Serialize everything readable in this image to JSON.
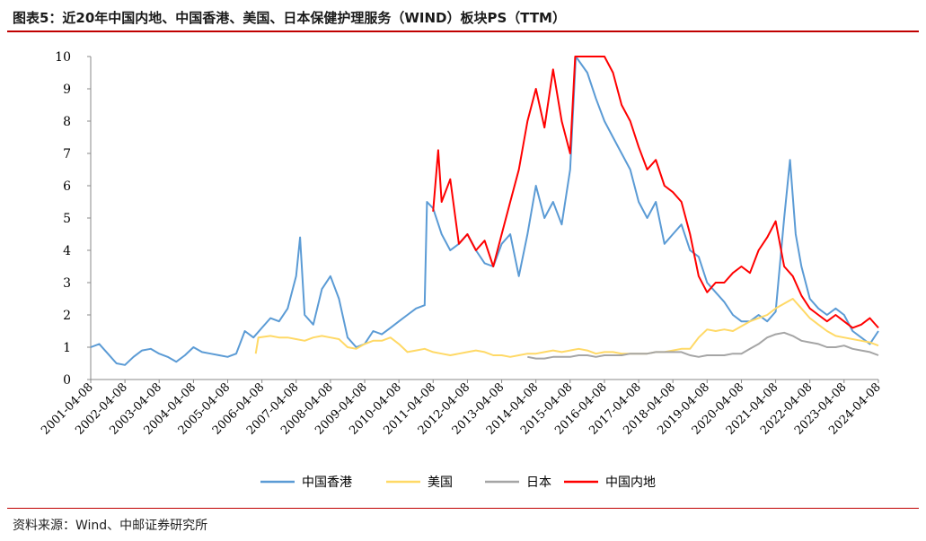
{
  "header": {
    "title": "图表5：近20年中国内地、中国香港、美国、日本保健护理服务（WIND）板块PS（TTM）"
  },
  "footer": {
    "source": "资料来源：Wind、中邮证券研究所"
  },
  "colors": {
    "accent_rule": "#c00000"
  },
  "chart_data": {
    "type": "line",
    "title": "图表5：近20年中国内地、中国香港、美国、日本保健护理服务（WIND）板块PS（TTM）",
    "xlabel": "",
    "ylabel": "",
    "ylim": [
      0,
      10
    ],
    "yticks": [
      "0",
      "1",
      "2",
      "3",
      "4",
      "5",
      "6",
      "7",
      "8",
      "9",
      "10"
    ],
    "xticks": [
      "2001-04-08",
      "2002-04-08",
      "2003-04-08",
      "2004-04-08",
      "2005-04-08",
      "2006-04-08",
      "2007-04-08",
      "2008-04-08",
      "2009-04-08",
      "2010-04-08",
      "2011-04-08",
      "2012-04-08",
      "2013-04-08",
      "2014-04-08",
      "2015-04-08",
      "2016-04-08",
      "2017-04-08",
      "2018-04-08",
      "2019-04-08",
      "2020-04-08",
      "2021-04-08",
      "2022-04-08",
      "2023-04-08",
      "2024-04-08"
    ],
    "grid": false,
    "legend_position": "bottom",
    "series": [
      {
        "name": "中国香港",
        "color": "#5b9bd5",
        "points": [
          [
            "2001-04-08",
            1.0
          ],
          [
            "2001-07-08",
            1.1
          ],
          [
            "2001-10-08",
            0.8
          ],
          [
            "2002-01-08",
            0.5
          ],
          [
            "2002-04-08",
            0.45
          ],
          [
            "2002-07-08",
            0.7
          ],
          [
            "2002-10-08",
            0.9
          ],
          [
            "2003-01-08",
            0.95
          ],
          [
            "2003-04-08",
            0.8
          ],
          [
            "2003-07-08",
            0.7
          ],
          [
            "2003-10-08",
            0.55
          ],
          [
            "2004-01-08",
            0.75
          ],
          [
            "2004-04-08",
            1.0
          ],
          [
            "2004-07-08",
            0.85
          ],
          [
            "2004-10-08",
            0.8
          ],
          [
            "2005-01-08",
            0.75
          ],
          [
            "2005-04-08",
            0.7
          ],
          [
            "2005-07-08",
            0.8
          ],
          [
            "2005-10-08",
            1.5
          ],
          [
            "2006-01-08",
            1.3
          ],
          [
            "2006-04-08",
            1.6
          ],
          [
            "2006-07-08",
            1.9
          ],
          [
            "2006-10-08",
            1.8
          ],
          [
            "2007-01-08",
            2.2
          ],
          [
            "2007-04-08",
            3.2
          ],
          [
            "2007-05-20",
            4.4
          ],
          [
            "2007-07-08",
            2.0
          ],
          [
            "2007-10-08",
            1.7
          ],
          [
            "2008-01-08",
            2.8
          ],
          [
            "2008-04-08",
            3.2
          ],
          [
            "2008-07-08",
            2.5
          ],
          [
            "2008-10-08",
            1.3
          ],
          [
            "2009-01-08",
            1.0
          ],
          [
            "2009-04-08",
            1.1
          ],
          [
            "2009-07-08",
            1.5
          ],
          [
            "2009-10-08",
            1.4
          ],
          [
            "2010-01-08",
            1.6
          ],
          [
            "2010-04-08",
            1.8
          ],
          [
            "2010-07-08",
            2.0
          ],
          [
            "2010-10-08",
            2.2
          ],
          [
            "2011-01-08",
            2.3
          ],
          [
            "2011-02-01",
            5.5
          ],
          [
            "2011-04-08",
            5.3
          ],
          [
            "2011-07-08",
            4.5
          ],
          [
            "2011-10-08",
            4.0
          ],
          [
            "2012-01-08",
            4.2
          ],
          [
            "2012-04-08",
            4.5
          ],
          [
            "2012-07-08",
            4.0
          ],
          [
            "2012-10-08",
            3.6
          ],
          [
            "2013-01-08",
            3.5
          ],
          [
            "2013-04-08",
            4.2
          ],
          [
            "2013-07-08",
            4.5
          ],
          [
            "2013-10-08",
            3.2
          ],
          [
            "2014-01-08",
            4.5
          ],
          [
            "2014-04-08",
            6.0
          ],
          [
            "2014-07-08",
            5.0
          ],
          [
            "2014-10-08",
            5.5
          ],
          [
            "2015-01-08",
            4.8
          ],
          [
            "2015-04-08",
            6.5
          ],
          [
            "2015-06-08",
            10
          ],
          [
            "2015-10-08",
            9.5
          ],
          [
            "2016-01-08",
            8.7
          ],
          [
            "2016-04-08",
            8.0
          ],
          [
            "2016-07-08",
            7.5
          ],
          [
            "2016-10-08",
            7.0
          ],
          [
            "2017-01-08",
            6.5
          ],
          [
            "2017-04-08",
            5.5
          ],
          [
            "2017-07-08",
            5.0
          ],
          [
            "2017-10-08",
            5.5
          ],
          [
            "2018-01-08",
            4.2
          ],
          [
            "2018-04-08",
            4.5
          ],
          [
            "2018-07-08",
            4.8
          ],
          [
            "2018-10-08",
            4.0
          ],
          [
            "2019-01-08",
            3.8
          ],
          [
            "2019-04-08",
            3.0
          ],
          [
            "2019-07-08",
            2.7
          ],
          [
            "2019-10-08",
            2.4
          ],
          [
            "2020-01-08",
            2.0
          ],
          [
            "2020-04-08",
            1.8
          ],
          [
            "2020-07-08",
            1.8
          ],
          [
            "2020-10-08",
            2.0
          ],
          [
            "2021-01-08",
            1.8
          ],
          [
            "2021-04-08",
            2.1
          ],
          [
            "2021-07-08",
            5.0
          ],
          [
            "2021-09-08",
            6.8
          ],
          [
            "2021-11-08",
            4.5
          ],
          [
            "2022-01-08",
            3.5
          ],
          [
            "2022-04-08",
            2.5
          ],
          [
            "2022-07-08",
            2.2
          ],
          [
            "2022-10-08",
            2.0
          ],
          [
            "2023-01-08",
            2.2
          ],
          [
            "2023-04-08",
            2.0
          ],
          [
            "2023-07-08",
            1.5
          ],
          [
            "2023-10-08",
            1.3
          ],
          [
            "2024-01-08",
            1.1
          ],
          [
            "2024-04-08",
            1.5
          ]
        ]
      },
      {
        "name": "美国",
        "color": "#ffd966",
        "points": [
          [
            "2006-02-01",
            0.8
          ],
          [
            "2006-03-01",
            1.3
          ],
          [
            "2006-07-08",
            1.35
          ],
          [
            "2006-10-08",
            1.3
          ],
          [
            "2007-01-08",
            1.3
          ],
          [
            "2007-04-08",
            1.25
          ],
          [
            "2007-07-08",
            1.2
          ],
          [
            "2007-10-08",
            1.3
          ],
          [
            "2008-01-08",
            1.35
          ],
          [
            "2008-04-08",
            1.3
          ],
          [
            "2008-07-08",
            1.25
          ],
          [
            "2008-10-08",
            1.0
          ],
          [
            "2009-01-08",
            0.95
          ],
          [
            "2009-04-08",
            1.1
          ],
          [
            "2009-07-08",
            1.2
          ],
          [
            "2009-10-08",
            1.2
          ],
          [
            "2010-01-08",
            1.3
          ],
          [
            "2010-04-08",
            1.1
          ],
          [
            "2010-07-08",
            0.85
          ],
          [
            "2010-10-08",
            0.9
          ],
          [
            "2011-01-08",
            0.95
          ],
          [
            "2011-04-08",
            0.85
          ],
          [
            "2011-07-08",
            0.8
          ],
          [
            "2011-10-08",
            0.75
          ],
          [
            "2012-01-08",
            0.8
          ],
          [
            "2012-04-08",
            0.85
          ],
          [
            "2012-07-08",
            0.9
          ],
          [
            "2012-10-08",
            0.85
          ],
          [
            "2013-01-08",
            0.75
          ],
          [
            "2013-04-08",
            0.75
          ],
          [
            "2013-07-08",
            0.7
          ],
          [
            "2013-10-08",
            0.75
          ],
          [
            "2014-01-08",
            0.8
          ],
          [
            "2014-04-08",
            0.8
          ],
          [
            "2014-07-08",
            0.85
          ],
          [
            "2014-10-08",
            0.9
          ],
          [
            "2015-01-08",
            0.85
          ],
          [
            "2015-04-08",
            0.9
          ],
          [
            "2015-07-08",
            0.95
          ],
          [
            "2015-10-08",
            0.9
          ],
          [
            "2016-01-08",
            0.8
          ],
          [
            "2016-04-08",
            0.85
          ],
          [
            "2016-07-08",
            0.85
          ],
          [
            "2016-10-08",
            0.8
          ],
          [
            "2017-01-08",
            0.8
          ],
          [
            "2017-04-08",
            0.8
          ],
          [
            "2017-07-08",
            0.8
          ],
          [
            "2017-10-08",
            0.85
          ],
          [
            "2018-01-08",
            0.85
          ],
          [
            "2018-04-08",
            0.9
          ],
          [
            "2018-07-08",
            0.95
          ],
          [
            "2018-10-08",
            0.95
          ],
          [
            "2019-01-08",
            1.3
          ],
          [
            "2019-04-08",
            1.55
          ],
          [
            "2019-07-08",
            1.5
          ],
          [
            "2019-10-08",
            1.55
          ],
          [
            "2020-01-08",
            1.5
          ],
          [
            "2020-04-08",
            1.65
          ],
          [
            "2020-07-08",
            1.8
          ],
          [
            "2020-10-08",
            1.9
          ],
          [
            "2021-01-08",
            2.0
          ],
          [
            "2021-04-08",
            2.2
          ],
          [
            "2021-07-08",
            2.35
          ],
          [
            "2021-10-08",
            2.5
          ],
          [
            "2022-01-08",
            2.2
          ],
          [
            "2022-04-08",
            1.9
          ],
          [
            "2022-07-08",
            1.7
          ],
          [
            "2022-10-08",
            1.5
          ],
          [
            "2023-01-08",
            1.35
          ],
          [
            "2023-04-08",
            1.3
          ],
          [
            "2023-07-08",
            1.25
          ],
          [
            "2023-10-08",
            1.2
          ],
          [
            "2024-01-08",
            1.15
          ],
          [
            "2024-04-08",
            1.05
          ]
        ]
      },
      {
        "name": "日本",
        "color": "#a5a5a5",
        "points": [
          [
            "2014-01-08",
            0.7
          ],
          [
            "2014-04-08",
            0.65
          ],
          [
            "2014-07-08",
            0.65
          ],
          [
            "2014-10-08",
            0.7
          ],
          [
            "2015-01-08",
            0.7
          ],
          [
            "2015-04-08",
            0.7
          ],
          [
            "2015-07-08",
            0.75
          ],
          [
            "2015-10-08",
            0.75
          ],
          [
            "2016-01-08",
            0.7
          ],
          [
            "2016-04-08",
            0.75
          ],
          [
            "2016-07-08",
            0.75
          ],
          [
            "2016-10-08",
            0.75
          ],
          [
            "2017-01-08",
            0.8
          ],
          [
            "2017-04-08",
            0.8
          ],
          [
            "2017-07-08",
            0.8
          ],
          [
            "2017-10-08",
            0.85
          ],
          [
            "2018-01-08",
            0.85
          ],
          [
            "2018-04-08",
            0.85
          ],
          [
            "2018-07-08",
            0.85
          ],
          [
            "2018-10-08",
            0.75
          ],
          [
            "2019-01-08",
            0.7
          ],
          [
            "2019-04-08",
            0.75
          ],
          [
            "2019-07-08",
            0.75
          ],
          [
            "2019-10-08",
            0.75
          ],
          [
            "2020-01-08",
            0.8
          ],
          [
            "2020-04-08",
            0.8
          ],
          [
            "2020-07-08",
            0.95
          ],
          [
            "2020-10-08",
            1.1
          ],
          [
            "2021-01-08",
            1.3
          ],
          [
            "2021-04-08",
            1.4
          ],
          [
            "2021-07-08",
            1.45
          ],
          [
            "2021-10-08",
            1.35
          ],
          [
            "2022-01-08",
            1.2
          ],
          [
            "2022-04-08",
            1.15
          ],
          [
            "2022-07-08",
            1.1
          ],
          [
            "2022-10-08",
            1.0
          ],
          [
            "2023-01-08",
            1.0
          ],
          [
            "2023-04-08",
            1.05
          ],
          [
            "2023-07-08",
            0.95
          ],
          [
            "2023-10-08",
            0.9
          ],
          [
            "2024-01-08",
            0.85
          ],
          [
            "2024-04-08",
            0.75
          ]
        ]
      },
      {
        "name": "中国内地",
        "color": "#ff0000",
        "points": [
          [
            "2011-04-08",
            5.2
          ],
          [
            "2011-06-01",
            7.1
          ],
          [
            "2011-07-08",
            5.5
          ],
          [
            "2011-10-08",
            6.2
          ],
          [
            "2012-01-08",
            4.2
          ],
          [
            "2012-04-08",
            4.5
          ],
          [
            "2012-07-08",
            4.0
          ],
          [
            "2012-10-08",
            4.3
          ],
          [
            "2013-01-08",
            3.5
          ],
          [
            "2013-04-08",
            4.5
          ],
          [
            "2013-07-08",
            5.5
          ],
          [
            "2013-10-08",
            6.5
          ],
          [
            "2014-01-08",
            8.0
          ],
          [
            "2014-04-08",
            9.0
          ],
          [
            "2014-07-08",
            7.8
          ],
          [
            "2014-10-08",
            9.6
          ],
          [
            "2015-01-08",
            8.0
          ],
          [
            "2015-04-08",
            7.0
          ],
          [
            "2015-06-01",
            10
          ],
          [
            "2016-04-08",
            10
          ],
          [
            "2016-07-08",
            9.5
          ],
          [
            "2016-10-08",
            8.5
          ],
          [
            "2017-01-08",
            8.0
          ],
          [
            "2017-04-08",
            7.2
          ],
          [
            "2017-07-08",
            6.5
          ],
          [
            "2017-10-08",
            6.8
          ],
          [
            "2018-01-08",
            6.0
          ],
          [
            "2018-04-08",
            5.8
          ],
          [
            "2018-07-08",
            5.5
          ],
          [
            "2018-10-08",
            4.5
          ],
          [
            "2019-01-08",
            3.2
          ],
          [
            "2019-04-08",
            2.7
          ],
          [
            "2019-07-08",
            3.0
          ],
          [
            "2019-10-08",
            3.0
          ],
          [
            "2020-01-08",
            3.3
          ],
          [
            "2020-04-08",
            3.5
          ],
          [
            "2020-07-08",
            3.3
          ],
          [
            "2020-10-08",
            4.0
          ],
          [
            "2021-01-08",
            4.4
          ],
          [
            "2021-04-08",
            4.9
          ],
          [
            "2021-07-08",
            3.5
          ],
          [
            "2021-10-08",
            3.2
          ],
          [
            "2022-01-08",
            2.6
          ],
          [
            "2022-04-08",
            2.2
          ],
          [
            "2022-07-08",
            2.0
          ],
          [
            "2022-10-08",
            1.8
          ],
          [
            "2023-01-08",
            2.0
          ],
          [
            "2023-04-08",
            1.8
          ],
          [
            "2023-07-08",
            1.6
          ],
          [
            "2023-10-08",
            1.7
          ],
          [
            "2024-01-08",
            1.9
          ],
          [
            "2024-04-08",
            1.6
          ]
        ]
      }
    ]
  }
}
